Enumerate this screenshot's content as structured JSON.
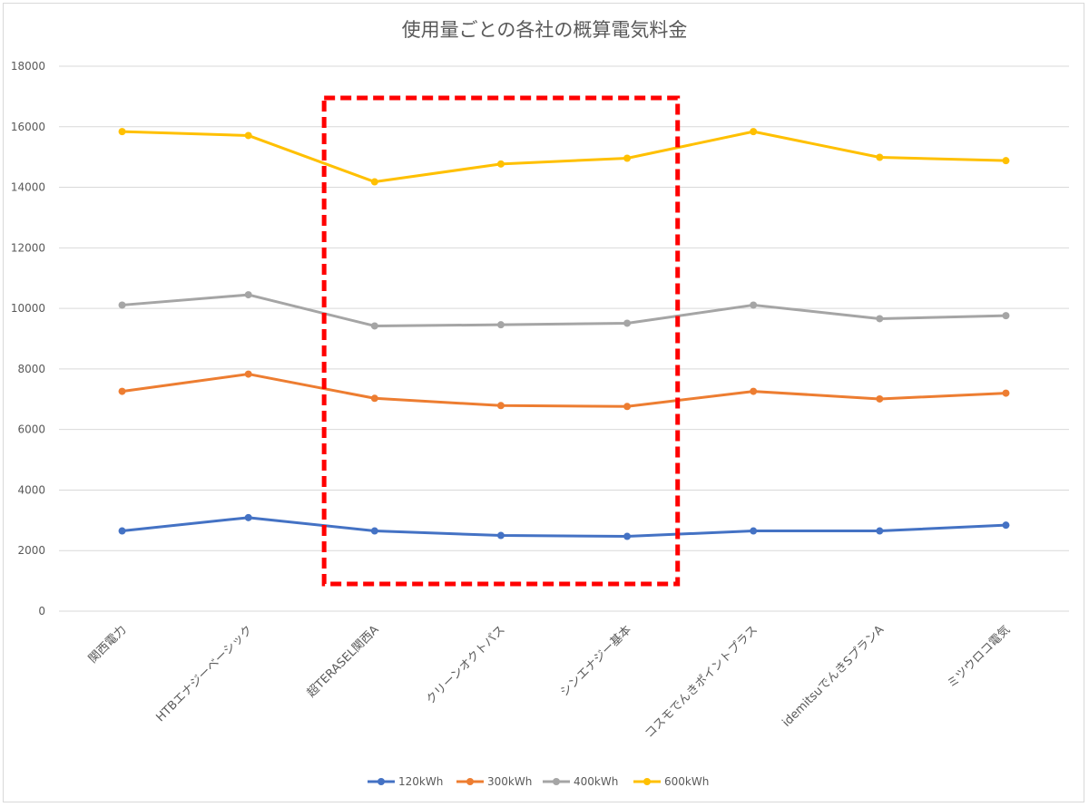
{
  "chart_data": {
    "type": "line",
    "title": "使用量ごとの各社の概算電気料金",
    "xlabel": "",
    "ylabel": "",
    "ylim": [
      0,
      18000
    ],
    "yticks": [
      0,
      2000,
      4000,
      6000,
      8000,
      10000,
      12000,
      14000,
      16000,
      18000
    ],
    "grid": true,
    "legend_position": "bottom",
    "categories": [
      "関西電力",
      "HTBエナジーベーシック",
      "超TERASEL関西A",
      "クリーンオクトパス",
      "シンエナジー基本",
      "コスモでんきポイントプラス",
      "idemitsuでんきSプランA",
      "ミツウロコ電気"
    ],
    "series": [
      {
        "name": "120kWh",
        "color": "#4472c4",
        "values": [
          2650,
          3090,
          2650,
          2500,
          2470,
          2650,
          2650,
          2840
        ]
      },
      {
        "name": "300kWh",
        "color": "#ed7d31",
        "values": [
          7260,
          7830,
          7030,
          6790,
          6760,
          7260,
          7010,
          7200
        ]
      },
      {
        "name": "400kWh",
        "color": "#a5a5a5",
        "values": [
          10110,
          10450,
          9420,
          9460,
          9510,
          10110,
          9660,
          9760
        ]
      },
      {
        "name": "600kWh",
        "color": "#ffc000",
        "values": [
          15840,
          15710,
          14180,
          14770,
          14960,
          15840,
          14990,
          14880
        ]
      }
    ],
    "annotations": [
      {
        "type": "dashed-box",
        "color": "#ff0000",
        "category_start": 2,
        "category_end": 4,
        "y_bottom": 900,
        "y_top": 16950
      }
    ]
  }
}
